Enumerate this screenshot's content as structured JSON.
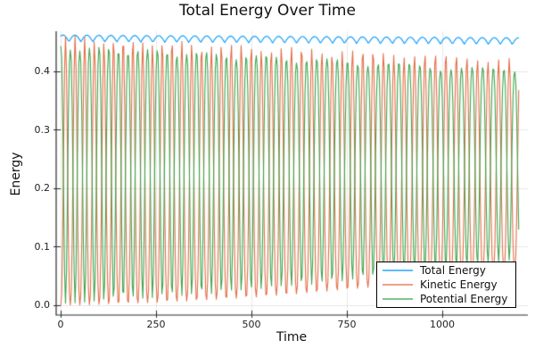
{
  "chart_data": {
    "type": "line",
    "title": "Total Energy Over Time",
    "xlabel": "Time",
    "ylabel": "Energy",
    "xlim": [
      -12,
      1224
    ],
    "ylim": [
      -0.0168,
      0.4685
    ],
    "grid": true,
    "frame": "axes-only",
    "xticks": {
      "values": [
        0,
        250,
        500,
        750,
        1000
      ],
      "labels": [
        "0",
        "250",
        "500",
        "750",
        "1000"
      ]
    },
    "yticks": {
      "values": [
        0.0,
        0.1,
        0.2,
        0.3,
        0.4
      ],
      "labels": [
        "0.0",
        "0.1",
        "0.2",
        "0.3",
        "0.4"
      ]
    },
    "legend": {
      "position": "bottom-right",
      "border_color": "#000000",
      "background": "#ffffff"
    },
    "sampling": {
      "t_start": 0,
      "t_end": 1200,
      "dt": 2.5
    },
    "series": [
      {
        "name": "Total Energy",
        "color": "#009AFA",
        "role": "total",
        "gen": {
          "base": 0.4505,
          "trend": -4e-06,
          "scallop_amp": 0.0115,
          "scallop_period": 31.4,
          "scallop_phase": 10
        }
      },
      {
        "name": "Kinetic Energy",
        "color": "#E36F47",
        "role": "kinetic",
        "gen": {
          "osc_period0": 25,
          "osc_period_growth": 0.0012,
          "peak_sharpness": 1.3,
          "max_decay": 6e-05,
          "floor_quad": 3.5e-08,
          "floor_lin": 1e-05
        }
      },
      {
        "name": "Potential Energy",
        "color": "#3EA44E",
        "role": "potential",
        "gen": {
          "scale0": 0.955,
          "scale_decay": 5e-05,
          "offset": 0.003,
          "floor_share": 0.75
        }
      }
    ],
    "envelopes_read_from_chart": {
      "t": [
        0,
        300,
        600,
        900,
        1200
      ],
      "total_upper": [
        0.462,
        0.461,
        0.46,
        0.458,
        0.457
      ],
      "total_lower": [
        0.45,
        0.449,
        0.448,
        0.447,
        0.446
      ],
      "kinetic_upper": [
        0.456,
        0.447,
        0.438,
        0.428,
        0.418
      ],
      "kinetic_lower": [
        0.0,
        0.012,
        0.026,
        0.042,
        0.06
      ],
      "potential_upper": [
        0.442,
        0.43,
        0.417,
        0.405,
        0.392
      ],
      "potential_lower": [
        0.003,
        0.012,
        0.026,
        0.042,
        0.06
      ]
    }
  }
}
